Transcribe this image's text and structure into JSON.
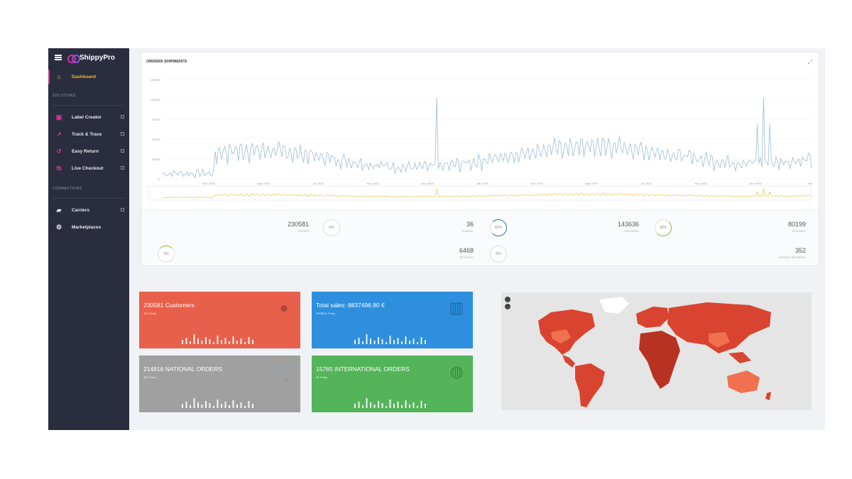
{
  "sidebar": {
    "logo": "ShippyPro",
    "active_item": "Dashboard",
    "section_solutions": "SOLUTIONS",
    "solutions": [
      {
        "label": "Label Creator",
        "icon": "label-icon"
      },
      {
        "label": "Track & Trace",
        "icon": "track-icon"
      },
      {
        "label": "Easy Return",
        "icon": "return-icon"
      },
      {
        "label": "Live Checkout",
        "icon": "checkout-icon"
      }
    ],
    "section_connections": "CONNECTIONS",
    "connections": [
      {
        "label": "Carriers",
        "icon": "truck-icon"
      },
      {
        "label": "Marketplaces",
        "icon": "gears-icon"
      }
    ]
  },
  "orders_chart": {
    "title": "ORDERS SHIPMENTS",
    "y_ticks": [
      "125000",
      "100000",
      "75000",
      "50000",
      "25000",
      "0"
    ],
    "x_ticks": [
      "Mar 2018",
      "May 2018",
      "Jul 2018",
      "Sep 2018",
      "Nov 2018",
      "Jan 2019",
      "Mar 2019",
      "May 2019",
      "Jul 2019",
      "Sep 2019",
      "Nov 2019",
      "Jan"
    ],
    "colors": {
      "series": "#9dbcd6",
      "navigator": "#f3c14a"
    }
  },
  "stats": [
    {
      "value": "230581",
      "label": "SHIPPED"
    },
    {
      "value": "36",
      "label": "PENDING"
    },
    {
      "value": "143636",
      "label": "DELIVERED"
    },
    {
      "value": "80199",
      "label": "IN TRANSIT"
    },
    {
      "value": "6468",
      "label": "RETURNED"
    },
    {
      "value": "352",
      "label": "AVERAGE SHIPMENTS"
    }
  ],
  "gauges": [
    "0%",
    "62%",
    "35%",
    "3%",
    "0%"
  ],
  "tiles": [
    {
      "title": "230581 Customers",
      "sub": "153 Today",
      "color": "#e8604b",
      "icon": "user-icon"
    },
    {
      "title": "Total sales: 8837496.80 €",
      "sub": "230581€ Today",
      "color": "#2d8fdd",
      "icon": "bar-chart-icon"
    },
    {
      "title": "214816 NATIONAL ORDERS",
      "sub": "289 Today",
      "color": "#a0a0a0",
      "icon": "cart-icon"
    },
    {
      "title": "15765 INTERNATIONAL ORDERS",
      "sub": "36 Today",
      "color": "#54b45a",
      "icon": "globe-icon"
    }
  ],
  "map": {
    "fill": "#d8442f",
    "land_light": "#f07050",
    "greenland": "#ffffff"
  }
}
